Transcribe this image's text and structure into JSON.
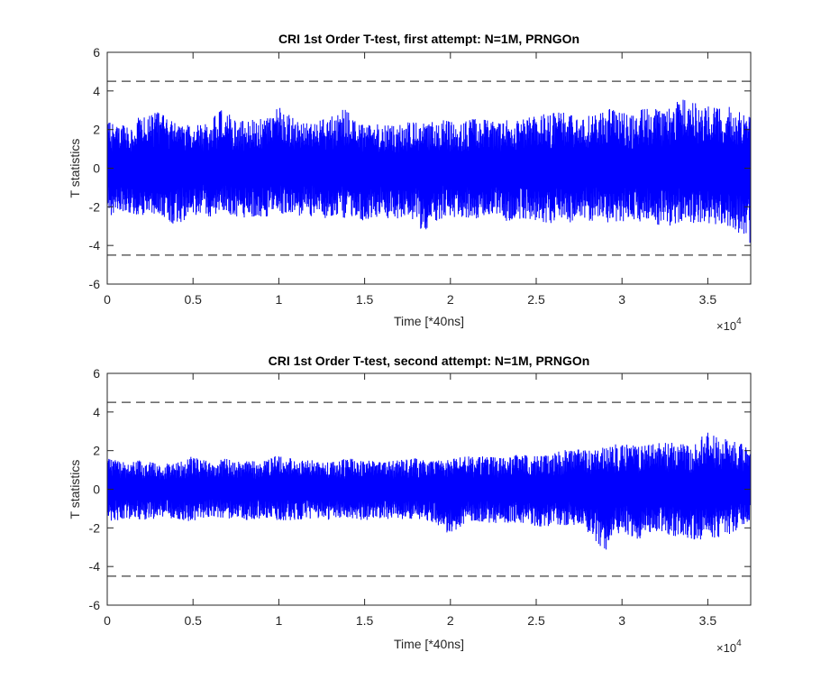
{
  "figure": {
    "background": "#ffffff",
    "trace_color": "#0000ff",
    "threshold_color": "#404040"
  },
  "chart_data": [
    {
      "type": "line",
      "title": "CRI 1st Order T-test, first attempt: N=1M, PRNGOn",
      "xlabel": "Time [*40ns]",
      "ylabel": "T statistics",
      "xlim": [
        0,
        37500
      ],
      "ylim": [
        -6,
        6
      ],
      "x_ticks": [
        0,
        5000,
        10000,
        15000,
        20000,
        25000,
        30000,
        35000
      ],
      "x_tick_labels": [
        "0",
        "0.5",
        "1",
        "1.5",
        "2",
        "2.5",
        "3",
        "3.5"
      ],
      "x_exponent_label": "×10",
      "x_exponent_power": "4",
      "y_ticks": [
        -6,
        -4,
        -2,
        0,
        2,
        4,
        6
      ],
      "y_tick_labels": [
        "-6",
        "-4",
        "-2",
        "0",
        "2",
        "4",
        "6"
      ],
      "grid": false,
      "thresholds": [
        4.5,
        -4.5
      ],
      "series_envelope": {
        "x": [
          0,
          1000,
          2000,
          3000,
          4000,
          5000,
          6000,
          6800,
          7500,
          8500,
          9500,
          10000,
          10800,
          11500,
          12500,
          13500,
          14000,
          14500,
          15500,
          16500,
          17500,
          18500,
          19500,
          20500,
          21500,
          22500,
          23500,
          24500,
          25500,
          26500,
          27500,
          28500,
          29500,
          30500,
          31500,
          32500,
          33500,
          34500,
          35500,
          36500,
          37500
        ],
        "upper": [
          2.4,
          2.2,
          2.7,
          2.9,
          2.3,
          2.2,
          2.5,
          3.1,
          2.4,
          2.5,
          2.6,
          3.2,
          2.6,
          2.3,
          2.5,
          2.8,
          3.3,
          2.4,
          2.3,
          2.2,
          2.4,
          2.3,
          2.5,
          2.3,
          2.6,
          2.4,
          2.5,
          2.6,
          2.8,
          2.9,
          2.6,
          2.9,
          3.1,
          2.7,
          3.2,
          3.0,
          3.6,
          3.3,
          3.1,
          3.2,
          2.6
        ],
        "lower": [
          -2.5,
          -2.2,
          -2.5,
          -2.3,
          -3.0,
          -2.4,
          -2.5,
          -2.2,
          -2.6,
          -2.5,
          -2.5,
          -2.3,
          -2.6,
          -2.4,
          -2.6,
          -2.5,
          -2.6,
          -2.9,
          -2.5,
          -2.6,
          -2.6,
          -3.3,
          -2.6,
          -2.5,
          -2.6,
          -2.5,
          -2.8,
          -2.6,
          -2.8,
          -2.9,
          -2.7,
          -2.8,
          -2.8,
          -2.7,
          -2.8,
          -3.0,
          -2.9,
          -2.8,
          -2.9,
          -3.1,
          -3.9
        ]
      }
    },
    {
      "type": "line",
      "title": "CRI 1st Order T-test, second attempt: N=1M, PRNGOn",
      "xlabel": "Time [*40ns]",
      "ylabel": "T statistics",
      "xlim": [
        0,
        37500
      ],
      "ylim": [
        -6,
        6
      ],
      "x_ticks": [
        0,
        5000,
        10000,
        15000,
        20000,
        25000,
        30000,
        35000
      ],
      "x_tick_labels": [
        "0",
        "0.5",
        "1",
        "1.5",
        "2",
        "2.5",
        "3",
        "3.5"
      ],
      "x_exponent_label": "×10",
      "x_exponent_power": "4",
      "y_ticks": [
        -6,
        -4,
        -2,
        0,
        2,
        4,
        6
      ],
      "y_tick_labels": [
        "-6",
        "-4",
        "-2",
        "0",
        "2",
        "4",
        "6"
      ],
      "grid": false,
      "thresholds": [
        4.5,
        -4.5
      ],
      "series_envelope": {
        "x": [
          0,
          1000,
          2000,
          3000,
          4000,
          5000,
          6000,
          7000,
          8000,
          9000,
          10000,
          11000,
          12000,
          13000,
          14000,
          15000,
          16000,
          17000,
          18000,
          19000,
          20000,
          21000,
          22000,
          23000,
          24000,
          25000,
          26000,
          27000,
          28000,
          29000,
          30000,
          31000,
          32000,
          33000,
          34000,
          35000,
          36000,
          37500
        ],
        "upper": [
          1.6,
          1.4,
          1.5,
          1.3,
          1.5,
          1.7,
          1.4,
          1.6,
          1.5,
          1.4,
          1.8,
          1.5,
          1.5,
          1.4,
          1.6,
          1.5,
          1.4,
          1.5,
          1.6,
          1.5,
          1.6,
          1.7,
          1.7,
          1.6,
          1.8,
          1.7,
          1.9,
          2.1,
          2.0,
          2.2,
          2.4,
          2.2,
          2.4,
          2.5,
          2.2,
          3.0,
          2.6,
          2.2
        ],
        "lower": [
          -1.8,
          -1.5,
          -1.6,
          -1.5,
          -1.5,
          -1.7,
          -1.4,
          -1.5,
          -1.6,
          -1.5,
          -1.6,
          -1.6,
          -1.5,
          -1.6,
          -1.5,
          -1.6,
          -1.5,
          -1.6,
          -1.5,
          -1.7,
          -2.4,
          -1.6,
          -1.7,
          -1.8,
          -1.7,
          -1.9,
          -2.0,
          -1.8,
          -2.2,
          -3.2,
          -2.2,
          -2.6,
          -2.2,
          -2.4,
          -2.6,
          -2.6,
          -2.4,
          -1.9
        ]
      }
    }
  ]
}
